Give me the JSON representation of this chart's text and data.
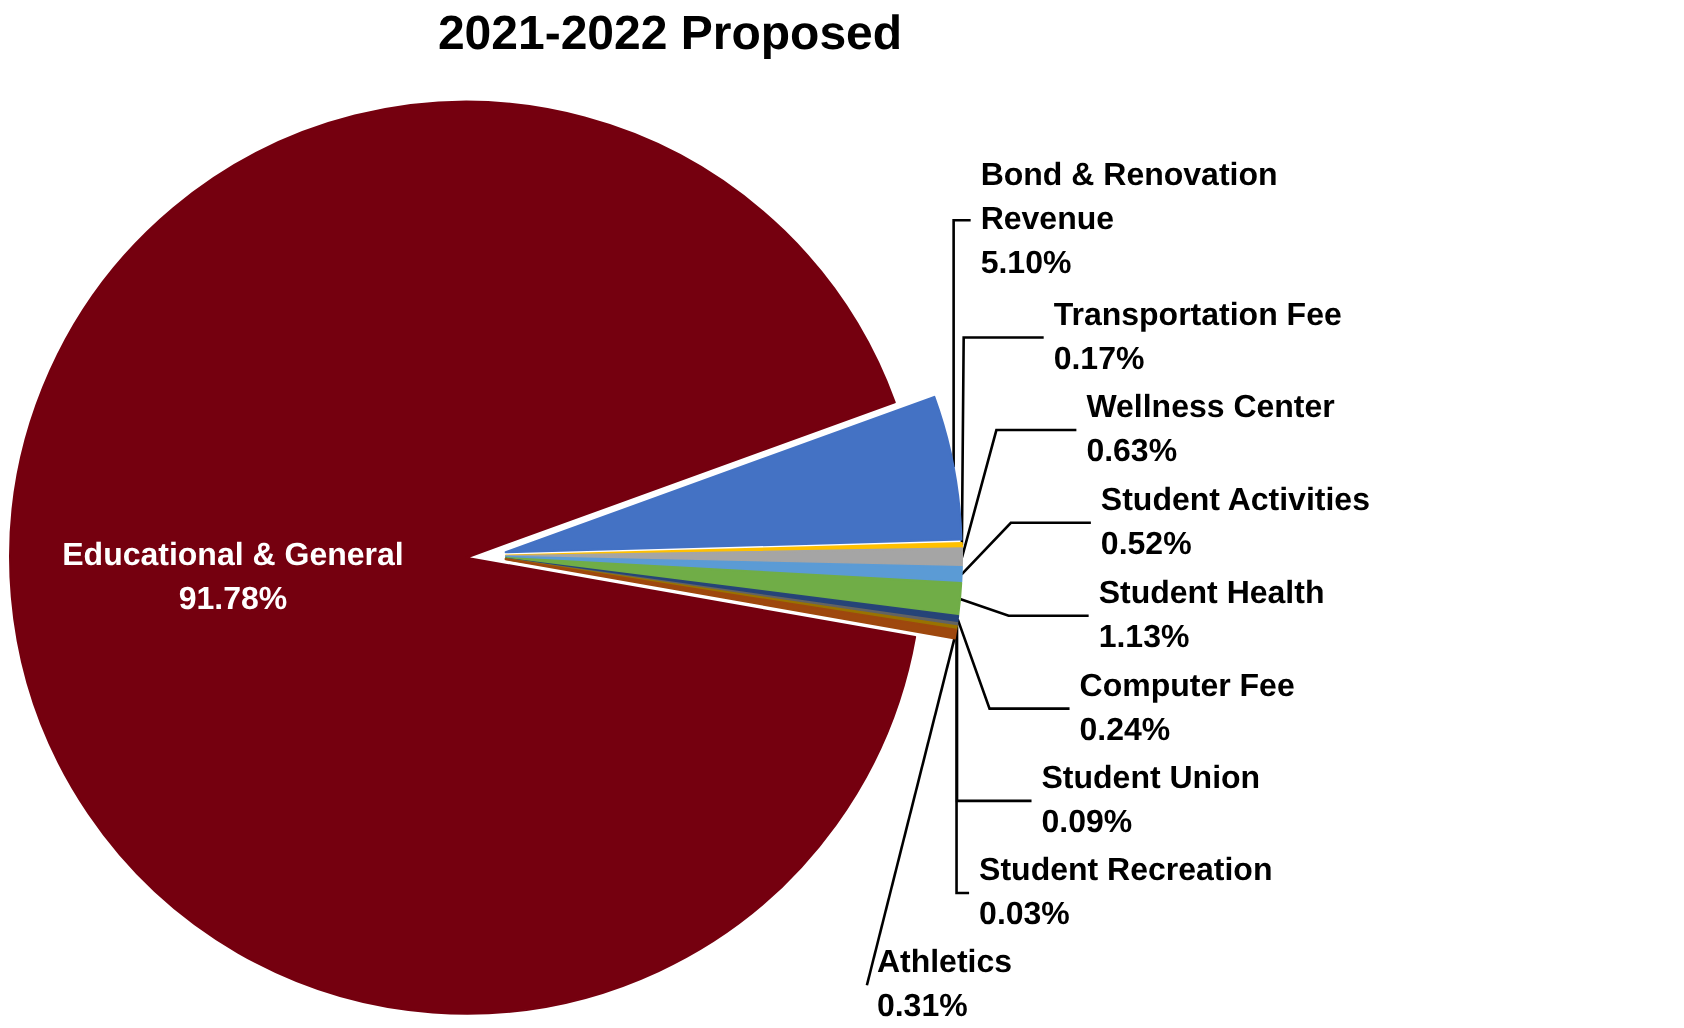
{
  "chart_data": {
    "type": "pie",
    "title": "2021-2022 Proposed",
    "categories": [
      "Educational & General",
      "Bond & Renovation Revenue",
      "Transportation Fee",
      "Wellness Center",
      "Student Activities",
      "Student Health",
      "Computer Fee",
      "Student Union",
      "Student Recreation",
      "Athletics"
    ],
    "values": [
      91.78,
      5.1,
      0.17,
      0.63,
      0.52,
      1.13,
      0.24,
      0.09,
      0.03,
      0.31
    ],
    "value_labels": [
      "91.78%",
      "5.10%",
      "0.17%",
      "0.63%",
      "0.52%",
      "1.13%",
      "0.24%",
      "0.09%",
      "0.03%",
      "0.31%"
    ],
    "colors": [
      "#75000f",
      "#4472c4",
      "#ffc000",
      "#a5a5a5",
      "#5b9bd5",
      "#70ad47",
      "#264478",
      "#636363",
      "#997300",
      "#9e480e"
    ],
    "legend": false
  }
}
